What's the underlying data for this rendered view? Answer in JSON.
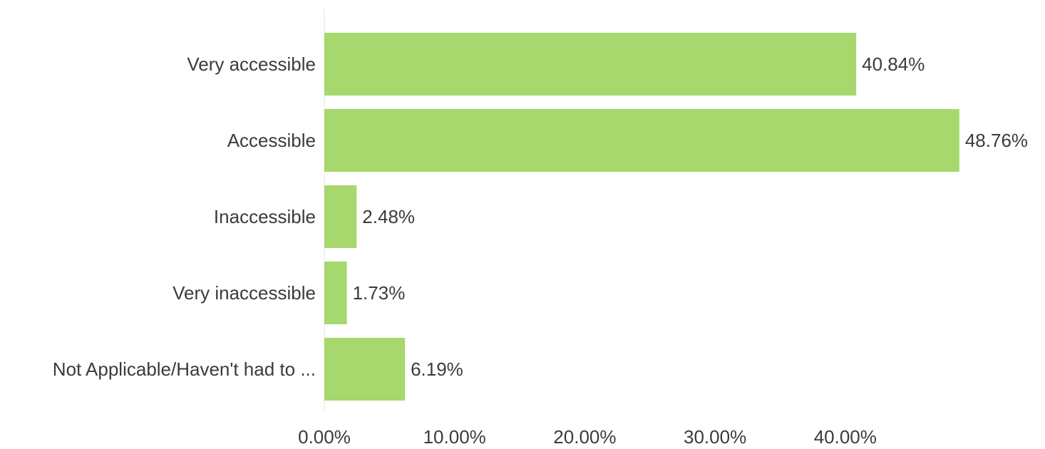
{
  "chart_data": {
    "type": "bar",
    "orientation": "horizontal",
    "categories": [
      "Very accessible",
      "Accessible",
      "Inaccessible",
      "Very inaccessible",
      "Not Applicable/Haven't had to ..."
    ],
    "values": [
      40.84,
      48.76,
      2.48,
      1.73,
      6.19
    ],
    "value_labels": [
      "40.84%",
      "48.76%",
      "2.48%",
      "1.73%",
      "6.19%"
    ],
    "x_ticks": [
      0,
      10,
      20,
      30,
      40
    ],
    "x_tick_labels": [
      "0.00%",
      "10.00%",
      "20.00%",
      "30.00%",
      "40.00%"
    ],
    "xlim": [
      0,
      48.76
    ],
    "title": "",
    "xlabel": "",
    "ylabel": "",
    "grid": false,
    "legend": "none",
    "colors": {
      "bar": "#a6d86e",
      "axis": "#e6e6e6",
      "text": "#3b3b3b"
    }
  }
}
